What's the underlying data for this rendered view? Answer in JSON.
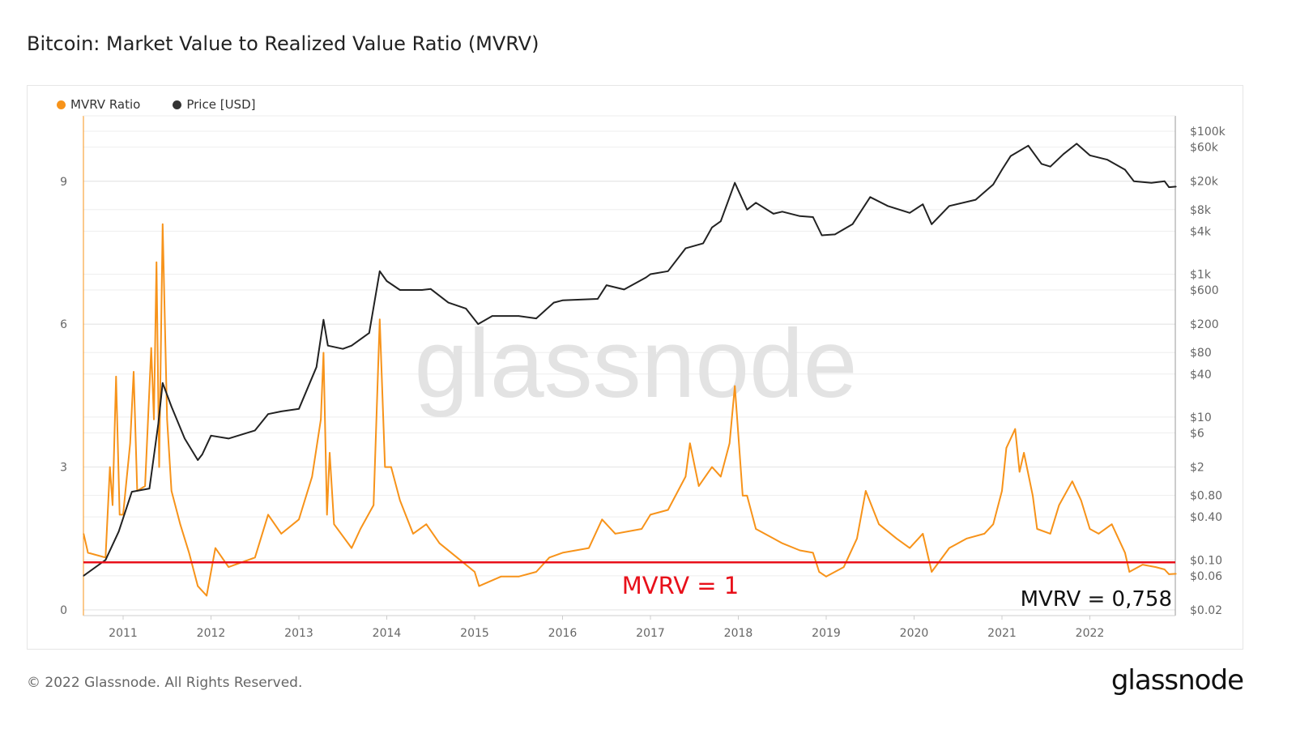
{
  "title": "Bitcoin: Market Value to Realized Value Ratio (MVRV)",
  "footer": "© 2022 Glassnode. All Rights Reserved.",
  "logo": "glassnode",
  "watermark": "glassnode",
  "legend": [
    {
      "label": "MVRV Ratio",
      "color": "#f7931a"
    },
    {
      "label": "Price [USD]",
      "color": "#333333"
    }
  ],
  "chart_data": {
    "type": "line",
    "title": "Bitcoin: Market Value to Realized Value Ratio (MVRV)",
    "x_ticks": [
      "2011",
      "2012",
      "2013",
      "2014",
      "2015",
      "2016",
      "2017",
      "2018",
      "2019",
      "2020",
      "2021",
      "2022"
    ],
    "xlim": [
      2010.55,
      2022.98
    ],
    "y_left": {
      "ticks": [
        "0",
        "3",
        "6",
        "9"
      ],
      "range": [
        0,
        10.2
      ],
      "scale": "linear"
    },
    "y_right": {
      "ticks": [
        [
          "$100k",
          100000
        ],
        [
          "$60k",
          60000
        ],
        [
          "$20k",
          20000
        ],
        [
          "$8k",
          8000
        ],
        [
          "$4k",
          4000
        ],
        [
          "$1k",
          1000
        ],
        [
          "$600",
          600
        ],
        [
          "$200",
          200
        ],
        [
          "$80",
          80
        ],
        [
          "$40",
          40
        ],
        [
          "$10",
          10
        ],
        [
          "$6",
          6
        ],
        [
          "$2",
          2
        ],
        [
          "$0.80",
          0.8
        ],
        [
          "$0.40",
          0.4
        ],
        [
          "$0.10",
          0.1
        ],
        [
          "$0.06",
          0.06
        ],
        [
          "$0.02",
          0.02
        ]
      ],
      "scale": "log"
    },
    "grid": true,
    "legend_position": "top-left",
    "annotations": {
      "reference_line": {
        "value": 1,
        "label": "MVRV = 1",
        "color": "#e8101a"
      },
      "current": "MVRV = 0,758"
    },
    "series": [
      {
        "name": "MVRV Ratio",
        "axis": "left",
        "color": "#f7931a",
        "x": [
          2010.55,
          2010.6,
          2010.8,
          2010.85,
          2010.88,
          2010.92,
          2010.96,
          2011.0,
          2011.08,
          2011.12,
          2011.16,
          2011.25,
          2011.32,
          2011.35,
          2011.38,
          2011.41,
          2011.45,
          2011.5,
          2011.55,
          2011.65,
          2011.75,
          2011.85,
          2011.95,
          2012.0,
          2012.05,
          2012.2,
          2012.5,
          2012.65,
          2012.8,
          2013.0,
          2013.15,
          2013.25,
          2013.28,
          2013.32,
          2013.35,
          2013.4,
          2013.6,
          2013.7,
          2013.85,
          2013.92,
          2013.98,
          2014.05,
          2014.15,
          2014.3,
          2014.45,
          2014.6,
          2014.8,
          2015.0,
          2015.05,
          2015.3,
          2015.5,
          2015.7,
          2015.85,
          2016.0,
          2016.3,
          2016.45,
          2016.6,
          2016.9,
          2017.0,
          2017.2,
          2017.4,
          2017.45,
          2017.55,
          2017.7,
          2017.8,
          2017.9,
          2017.96,
          2018.05,
          2018.1,
          2018.2,
          2018.4,
          2018.5,
          2018.7,
          2018.85,
          2018.92,
          2019.0,
          2019.2,
          2019.35,
          2019.45,
          2019.6,
          2019.8,
          2019.95,
          2020.1,
          2020.2,
          2020.4,
          2020.6,
          2020.8,
          2020.9,
          2021.0,
          2021.05,
          2021.15,
          2021.2,
          2021.25,
          2021.35,
          2021.4,
          2021.55,
          2021.65,
          2021.8,
          2021.9,
          2022.0,
          2022.1,
          2022.25,
          2022.4,
          2022.45,
          2022.6,
          2022.75,
          2022.85,
          2022.9,
          2022.98
        ],
        "values": [
          1.6,
          1.2,
          1.1,
          3.0,
          2.2,
          4.9,
          2.0,
          2.0,
          3.5,
          5.0,
          2.5,
          2.6,
          5.5,
          4.0,
          7.3,
          3.0,
          8.1,
          4.0,
          2.5,
          1.8,
          1.2,
          0.5,
          0.3,
          0.8,
          1.3,
          0.9,
          1.1,
          2.0,
          1.6,
          1.9,
          2.8,
          4.0,
          5.4,
          2.0,
          3.3,
          1.8,
          1.3,
          1.7,
          2.2,
          6.1,
          3.0,
          3.0,
          2.3,
          1.6,
          1.8,
          1.4,
          1.1,
          0.8,
          0.5,
          0.7,
          0.7,
          0.8,
          1.1,
          1.2,
          1.3,
          1.9,
          1.6,
          1.7,
          2.0,
          2.1,
          2.8,
          3.5,
          2.6,
          3.0,
          2.8,
          3.5,
          4.7,
          2.4,
          2.4,
          1.7,
          1.5,
          1.4,
          1.25,
          1.2,
          0.8,
          0.7,
          0.9,
          1.5,
          2.5,
          1.8,
          1.5,
          1.3,
          1.6,
          0.8,
          1.3,
          1.5,
          1.6,
          1.8,
          2.5,
          3.4,
          3.8,
          2.9,
          3.3,
          2.4,
          1.7,
          1.6,
          2.2,
          2.7,
          2.3,
          1.7,
          1.6,
          1.8,
          1.2,
          0.8,
          0.95,
          0.9,
          0.85,
          0.75,
          0.758
        ]
      },
      {
        "name": "Price [USD]",
        "axis": "right",
        "color": "#222222",
        "x": [
          2010.55,
          2010.8,
          2010.95,
          2011.1,
          2011.3,
          2011.4,
          2011.45,
          2011.55,
          2011.7,
          2011.85,
          2011.9,
          2012.0,
          2012.2,
          2012.5,
          2012.65,
          2012.8,
          2013.0,
          2013.2,
          2013.28,
          2013.33,
          2013.5,
          2013.6,
          2013.8,
          2013.92,
          2014.0,
          2014.15,
          2014.4,
          2014.5,
          2014.7,
          2014.9,
          2015.04,
          2015.2,
          2015.5,
          2015.7,
          2015.9,
          2016.0,
          2016.4,
          2016.5,
          2016.7,
          2016.95,
          2017.0,
          2017.2,
          2017.4,
          2017.6,
          2017.7,
          2017.8,
          2017.96,
          2018.1,
          2018.2,
          2018.4,
          2018.5,
          2018.7,
          2018.85,
          2018.95,
          2019.1,
          2019.3,
          2019.5,
          2019.7,
          2019.95,
          2020.1,
          2020.2,
          2020.4,
          2020.7,
          2020.9,
          2021.0,
          2021.1,
          2021.3,
          2021.45,
          2021.55,
          2021.7,
          2021.85,
          2022.0,
          2022.2,
          2022.4,
          2022.5,
          2022.7,
          2022.85,
          2022.9,
          2022.98
        ],
        "values": [
          0.06,
          0.1,
          0.25,
          0.9,
          1.0,
          8,
          30,
          14,
          5,
          2.5,
          3,
          5.5,
          5,
          6.5,
          11,
          12,
          13,
          50,
          230,
          100,
          90,
          100,
          150,
          1100,
          800,
          600,
          600,
          620,
          400,
          330,
          200,
          260,
          260,
          240,
          400,
          430,
          450,
          700,
          610,
          900,
          1000,
          1100,
          2300,
          2700,
          4500,
          5500,
          19000,
          8000,
          10000,
          7000,
          7500,
          6500,
          6300,
          3500,
          3600,
          5000,
          12000,
          9000,
          7200,
          9500,
          5000,
          9000,
          11000,
          18000,
          29000,
          45000,
          63000,
          35000,
          32000,
          48000,
          67000,
          46000,
          40000,
          29000,
          20000,
          19000,
          20000,
          16500,
          16800
        ]
      }
    ]
  }
}
